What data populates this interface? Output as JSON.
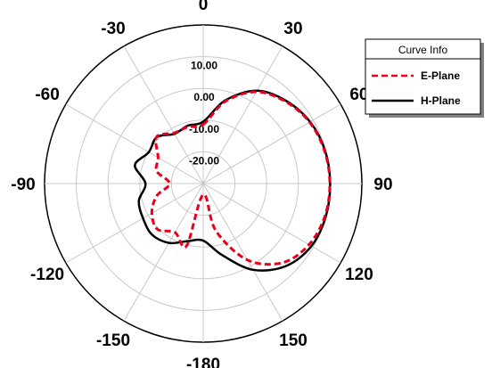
{
  "chart_data": {
    "type": "polar-line",
    "angle_ticks": [
      "0",
      "30",
      "60",
      "90",
      "120",
      "150",
      "-180",
      "-150",
      "-120",
      "-90",
      "-60",
      "-30"
    ],
    "angle_tick_values": [
      0,
      30,
      60,
      90,
      120,
      150,
      180,
      -150,
      -120,
      -90,
      -60,
      -30
    ],
    "radial_ticks": [
      "10.00",
      "0.00",
      "-10.00",
      "-20.00"
    ],
    "radial_tick_values": [
      10,
      0,
      -10,
      -20
    ],
    "radial_range": [
      -30,
      20
    ],
    "grid": true,
    "legend": {
      "title": "Curve Info",
      "placement": "top-right",
      "entries": [
        {
          "label": "E-Plane",
          "color": "#e8001c",
          "style": "dashed"
        },
        {
          "label": "H-Plane",
          "color": "#000000",
          "style": "solid"
        }
      ]
    },
    "series": [
      {
        "name": "E-Plane",
        "color": "#e8001c",
        "theta": [
          0,
          15,
          30,
          45,
          60,
          75,
          90,
          105,
          120,
          135,
          150,
          165,
          180,
          -165,
          -150,
          -135,
          -120,
          -105,
          -90,
          -75,
          -60,
          -45,
          -30,
          -15
        ],
        "r": [
          -11.4,
          -3.2,
          3.4,
          6.6,
          8.7,
          9.6,
          9.9,
          9.7,
          8.5,
          5.3,
          -2.2,
          -14.6,
          -26.5,
          -9.6,
          -12.2,
          -9.6,
          -11.3,
          -14.8,
          -19.4,
          -14.8,
          -13.6,
          -9.2,
          -11.6,
          -11.5
        ]
      },
      {
        "name": "H-Plane",
        "color": "#000000",
        "theta": [
          0,
          15,
          30,
          45,
          60,
          75,
          90,
          105,
          120,
          135,
          150,
          165,
          180,
          -165,
          -150,
          -135,
          -120,
          -105,
          -90,
          -75,
          -60,
          -45,
          -30,
          -15
        ],
        "r": [
          -10.5,
          -2.8,
          3.8,
          6.9,
          8.9,
          9.8,
          10.0,
          10.0,
          9.4,
          6.8,
          1.4,
          -6.6,
          -12.0,
          -11.2,
          -8.4,
          -7.2,
          -8.1,
          -9.0,
          -11.8,
          -7.7,
          -10.2,
          -9.3,
          -11.9,
          -11.1
        ]
      }
    ]
  }
}
